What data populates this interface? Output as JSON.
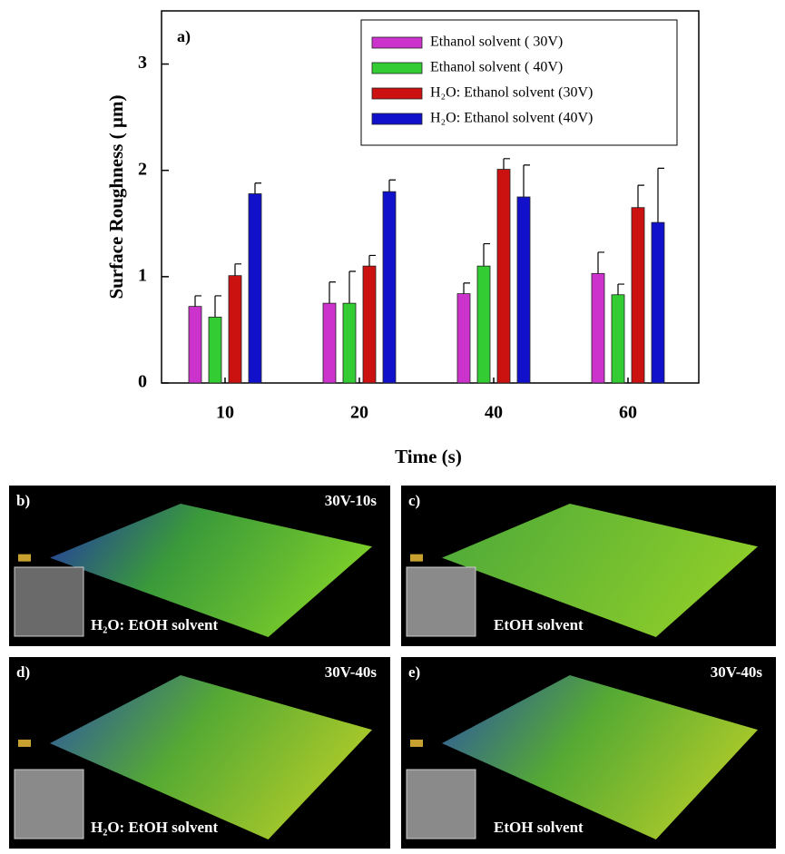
{
  "chart_data": {
    "type": "bar",
    "panel_label": "a)",
    "x_label": "Time (s)",
    "y_label": "Surface Roughness ( µm)",
    "categories": [
      "10",
      "20",
      "40",
      "60"
    ],
    "series": [
      {
        "name": "Ethanol solvent ( 30V)",
        "color": "#cc33cc",
        "values": [
          0.72,
          0.75,
          0.84,
          1.03
        ],
        "errors": [
          0.1,
          0.2,
          0.1,
          0.2
        ]
      },
      {
        "name": "Ethanol solvent ( 40V)",
        "color": "#33cc33",
        "values": [
          0.62,
          0.75,
          1.1,
          0.83
        ],
        "errors": [
          0.2,
          0.3,
          0.21,
          0.1
        ]
      },
      {
        "name": "H₂O: Ethanol solvent (30V)",
        "color": "#cc1111",
        "values": [
          1.01,
          1.1,
          2.01,
          1.65
        ],
        "errors": [
          0.11,
          0.1,
          0.1,
          0.21
        ]
      },
      {
        "name": "H₂O: Ethanol solvent (40V)",
        "color": "#1111cc",
        "values": [
          1.78,
          1.8,
          1.75,
          1.51
        ],
        "errors": [
          0.1,
          0.11,
          0.3,
          0.51
        ]
      }
    ],
    "ylim": [
      0,
      3.5
    ],
    "yticks": [
      0,
      1,
      2,
      3
    ],
    "legend": "upper right"
  },
  "panels": [
    {
      "label": "b)",
      "title": "30V-10s",
      "caption": "H₂O: EtOH solvent"
    },
    {
      "label": "c)",
      "caption": "EtOH solvent"
    },
    {
      "label": "d)",
      "title": "30V-40s",
      "caption": "H₂O: EtOH solvent"
    },
    {
      "label": "e)",
      "title": "30V-40s",
      "caption": "EtOH solvent"
    }
  ]
}
